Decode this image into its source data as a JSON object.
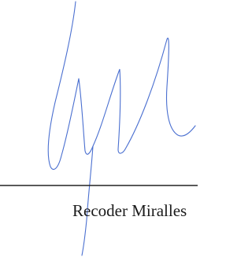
{
  "signature": {
    "name": "Recoder Miralles"
  }
}
